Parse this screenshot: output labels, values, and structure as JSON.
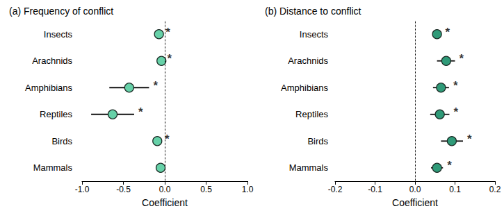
{
  "chart_data": [
    {
      "type": "scatter",
      "title": "(a) Frequency of conflict",
      "x_label": "Coefficient",
      "categories": [
        "Insects",
        "Arachnids",
        "Amphibians",
        "Reptiles",
        "Birds",
        "Mammals"
      ],
      "values": [
        -0.07,
        -0.04,
        -0.43,
        -0.63,
        -0.09,
        -0.05
      ],
      "ci_low": [
        -0.1,
        -0.06,
        -0.67,
        -0.89,
        -0.13,
        -0.08
      ],
      "ci_high": [
        -0.04,
        -0.02,
        -0.19,
        -0.37,
        -0.05,
        -0.02
      ],
      "significance": [
        "*",
        "*",
        "*",
        "*",
        "*",
        null
      ],
      "color": "#66d1a8",
      "reference_line": 0,
      "xlim": [
        -1,
        1
      ],
      "xticks": [
        {
          "value": -1,
          "label": "-1.0"
        },
        -0.5,
        {
          "value": 0,
          "label": "0.0"
        },
        0.5,
        {
          "value": 1,
          "label": "1.0"
        }
      ],
      "grid": false
    },
    {
      "type": "scatter",
      "title": "(b) Distance to conflict",
      "x_label": "Coefficient",
      "categories": [
        "Insects",
        "Arachnids",
        "Amphibians",
        "Reptiles",
        "Birds",
        "Mammals"
      ],
      "values": [
        0.055,
        0.078,
        0.065,
        0.062,
        0.092,
        0.055
      ],
      "ci_low": [
        0.045,
        0.055,
        0.045,
        0.038,
        0.065,
        0.04
      ],
      "ci_high": [
        0.065,
        0.1,
        0.085,
        0.086,
        0.12,
        0.07
      ],
      "significance": [
        "*",
        "*",
        "*",
        "*",
        "*",
        "*"
      ],
      "color": "#2f9a78",
      "reference_line": 0,
      "xlim": [
        -0.2,
        0.2
      ],
      "xticks": [
        -0.2,
        -0.1,
        {
          "value": 0,
          "label": "0.0"
        },
        0.1,
        0.2
      ],
      "grid": false
    }
  ]
}
